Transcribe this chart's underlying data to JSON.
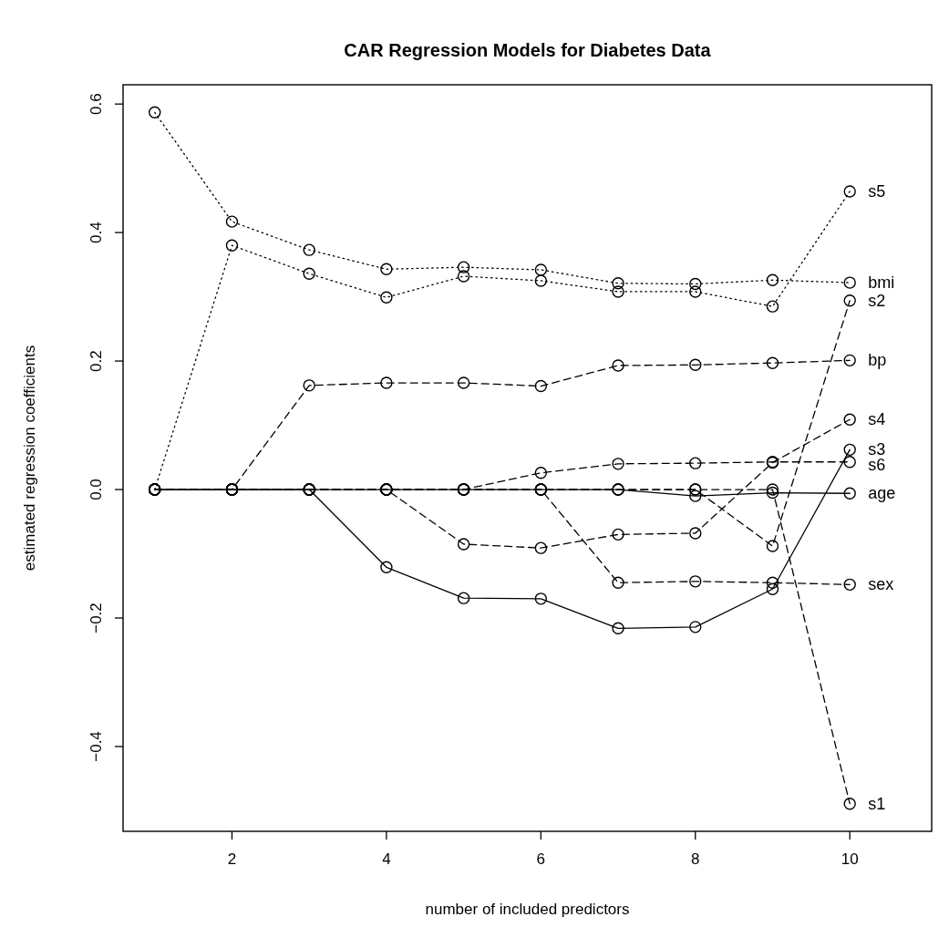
{
  "chart_data": {
    "type": "line",
    "title": "CAR Regression Models for Diabetes Data",
    "xlabel": "number of included predictors",
    "ylabel": "estimated regression coefficients",
    "x": [
      1,
      2,
      3,
      4,
      5,
      6,
      7,
      8,
      9,
      10
    ],
    "xlim": [
      0.59,
      11.06
    ],
    "xticks": [
      2,
      4,
      6,
      8,
      10
    ],
    "ylim": [
      -0.532,
      0.63
    ],
    "yticks": [
      {
        "value": -0.4,
        "label": "−0.4"
      },
      {
        "value": -0.2,
        "label": "−0.2"
      },
      {
        "value": 0,
        "label": "0.0"
      },
      {
        "value": 0.2,
        "label": "0.2"
      },
      {
        "value": 0.4,
        "label": "0.4"
      },
      {
        "value": 0.6,
        "label": "0.6"
      }
    ],
    "grid": false,
    "marker": "circle",
    "series": [
      {
        "name": "age",
        "color": "#000000",
        "line_style": "solid",
        "values": [
          0,
          0,
          0,
          0,
          0,
          0,
          0,
          -0.01,
          -0.005,
          -0.006
        ]
      },
      {
        "name": "sex",
        "color": "#000000",
        "line_style": "dashed",
        "values": [
          0,
          0,
          0,
          0,
          0,
          0,
          -0.145,
          -0.143,
          -0.145,
          -0.148
        ]
      },
      {
        "name": "bmi",
        "color": "#000000",
        "line_style": "dotted",
        "values": [
          0.587,
          0.417,
          0.373,
          0.343,
          0.346,
          0.342,
          0.321,
          0.32,
          0.326,
          0.322
        ]
      },
      {
        "name": "bp",
        "color": "#000000",
        "line_style": "dashed",
        "values": [
          0,
          0,
          0.162,
          0.166,
          0.166,
          0.161,
          0.193,
          0.194,
          0.197,
          0.201
        ]
      },
      {
        "name": "s1",
        "color": "#000000",
        "line_style": "dashed",
        "values": [
          0,
          0,
          0,
          0,
          0,
          0,
          0,
          0,
          0,
          -0.489
        ]
      },
      {
        "name": "s2",
        "color": "#000000",
        "line_style": "dashed",
        "values": [
          0,
          0,
          0,
          0,
          0,
          0,
          0,
          0,
          -0.088,
          0.294
        ]
      },
      {
        "name": "s3",
        "color": "#000000",
        "line_style": "solid",
        "values": [
          0,
          0,
          0,
          -0.121,
          -0.169,
          -0.17,
          -0.216,
          -0.214,
          -0.155,
          0.062
        ]
      },
      {
        "name": "s4",
        "color": "#000000",
        "line_style": "dashed",
        "values": [
          0,
          0,
          0,
          0,
          -0.085,
          -0.091,
          -0.07,
          -0.068,
          0.042,
          0.109
        ]
      },
      {
        "name": "s5",
        "color": "#000000",
        "line_style": "dotted",
        "values": [
          0,
          0.38,
          0.336,
          0.299,
          0.332,
          0.325,
          0.308,
          0.308,
          0.285,
          0.464
        ]
      },
      {
        "name": "s6",
        "color": "#000000",
        "line_style": "dashed",
        "values": [
          0,
          0,
          0,
          0,
          0,
          0.026,
          0.04,
          0.041,
          0.043,
          0.043
        ]
      }
    ]
  }
}
